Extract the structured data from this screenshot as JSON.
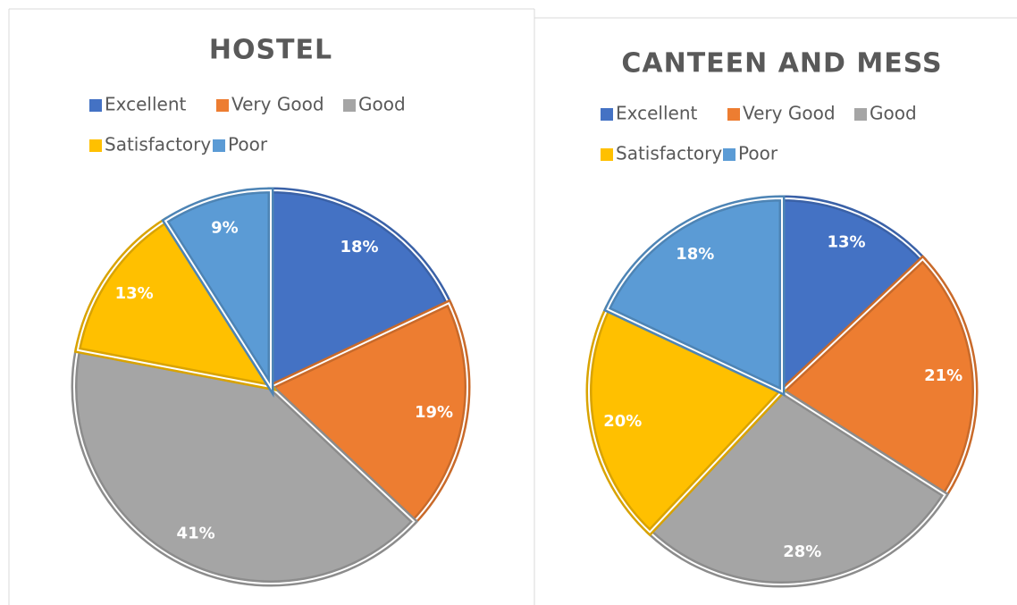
{
  "chart_data": [
    {
      "type": "pie",
      "title": "HOSTEL",
      "categories": [
        "Excellent",
        "Very Good",
        "Good",
        "Satisfactory",
        "Poor"
      ],
      "values": [
        18,
        19,
        41,
        13,
        9
      ],
      "value_labels": [
        "18%",
        "19%",
        "41%",
        "13%",
        "9%"
      ],
      "colors": [
        "#4472c4",
        "#ed7d31",
        "#a5a5a5",
        "#ffc000",
        "#5b9bd5"
      ],
      "legend": "top"
    },
    {
      "type": "pie",
      "title": "CANTEEN AND MESS",
      "categories": [
        "Excellent",
        "Very Good",
        "Good",
        "Satisfactory",
        "Poor"
      ],
      "values": [
        13,
        21,
        28,
        20,
        18
      ],
      "value_labels": [
        "13%",
        "21%",
        "28%",
        "20%",
        "18%"
      ],
      "colors": [
        "#4472c4",
        "#ed7d31",
        "#a5a5a5",
        "#ffc000",
        "#5b9bd5"
      ],
      "legend": "top"
    }
  ]
}
